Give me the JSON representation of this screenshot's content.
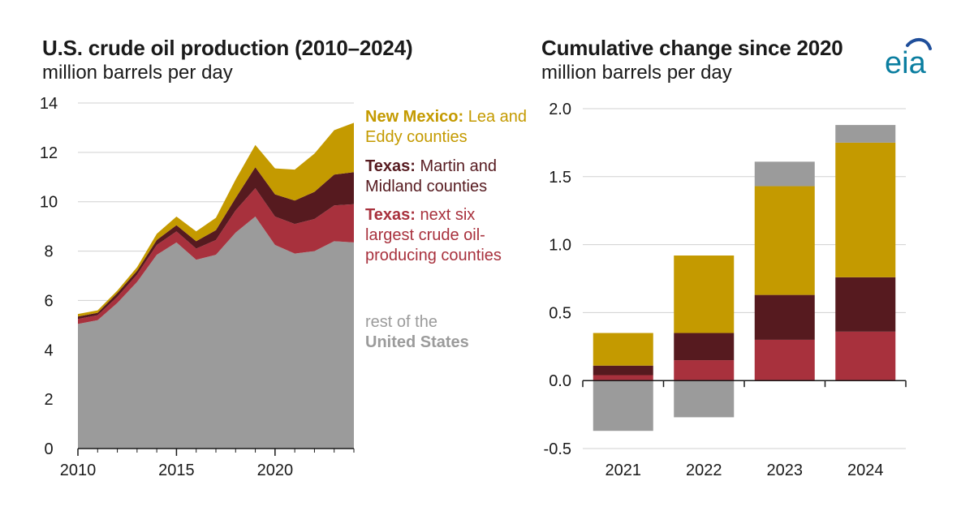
{
  "left_chart": {
    "title": "U.S. crude oil production (2010–2024)",
    "subtitle": "million barrels per day"
  },
  "right_chart": {
    "title": "Cumulative change since 2020",
    "subtitle": "million barrels per day"
  },
  "legend": [
    {
      "bold": "New Mexico:",
      "text": "Lea and Eddy counties",
      "color": "#c49a00"
    },
    {
      "bold": "Texas:",
      "text": "Martin and Midland counties",
      "color": "#561a1f"
    },
    {
      "bold": "Texas:",
      "text": "next six largest crude oil-producing counties",
      "color": "#a8313d"
    },
    {
      "bold": "United States",
      "text": "rest of the",
      "color": "#9b9b9b"
    }
  ],
  "logo": {
    "text": "eia",
    "color": "#0b7ea0",
    "accent": "#1f4e9a"
  },
  "colors": {
    "rest": "#9b9b9b",
    "six": "#a8313d",
    "martin_midland": "#561a1f",
    "new_mexico": "#c49a00",
    "grid": "#d0d0d0",
    "axis": "#1a1a1a"
  },
  "chart_data": [
    {
      "type": "area",
      "stacked": true,
      "title": "U.S. crude oil production (2010–2024)",
      "ylabel": "million barrels per day",
      "x": [
        2010,
        2011,
        2012,
        2013,
        2014,
        2015,
        2016,
        2017,
        2018,
        2019,
        2020,
        2021,
        2022,
        2023,
        2024
      ],
      "xticks": [
        2010,
        2015,
        2020
      ],
      "ylim": [
        0,
        14
      ],
      "yticks": [
        0,
        2,
        4,
        6,
        8,
        10,
        12,
        14
      ],
      "grid": true,
      "series": [
        {
          "name": "rest of the United States",
          "key": "rest",
          "values": [
            5.05,
            5.2,
            5.9,
            6.75,
            7.85,
            8.35,
            7.65,
            7.85,
            8.75,
            9.4,
            8.25,
            7.9,
            8.0,
            8.4,
            8.35
          ]
        },
        {
          "name": "Texas: next six largest crude oil-producing counties",
          "key": "six",
          "values": [
            0.2,
            0.2,
            0.25,
            0.3,
            0.4,
            0.45,
            0.45,
            0.6,
            0.9,
            1.15,
            1.15,
            1.2,
            1.3,
            1.45,
            1.55
          ]
        },
        {
          "name": "Texas: Martin and Midland counties",
          "key": "martin_midland",
          "values": [
            0.1,
            0.1,
            0.15,
            0.15,
            0.2,
            0.25,
            0.3,
            0.4,
            0.5,
            0.85,
            0.9,
            0.95,
            1.1,
            1.25,
            1.3
          ]
        },
        {
          "name": "New Mexico: Lea and Eddy counties",
          "key": "new_mexico",
          "values": [
            0.1,
            0.1,
            0.1,
            0.15,
            0.25,
            0.35,
            0.4,
            0.5,
            0.75,
            0.9,
            1.05,
            1.25,
            1.55,
            1.8,
            2.0
          ]
        }
      ]
    },
    {
      "type": "bar",
      "stacked": true,
      "title": "Cumulative change since 2020",
      "ylabel": "million barrels per day",
      "categories": [
        "2021",
        "2022",
        "2023",
        "2024"
      ],
      "ylim": [
        -0.5,
        2.0
      ],
      "yticks": [
        -0.5,
        0.0,
        0.5,
        1.0,
        1.5,
        2.0
      ],
      "ytick_labels": [
        "-0.5",
        "0.0",
        "0.5",
        "1.0",
        "1.5",
        "2.0"
      ],
      "grid": true,
      "series": [
        {
          "name": "Texas: next six largest crude oil-producing counties",
          "key": "six",
          "values": [
            0.04,
            0.15,
            0.3,
            0.36
          ]
        },
        {
          "name": "Texas: Martin and Midland counties",
          "key": "martin_midland",
          "values": [
            0.07,
            0.2,
            0.33,
            0.4
          ]
        },
        {
          "name": "New Mexico: Lea and Eddy counties",
          "key": "new_mexico",
          "values": [
            0.24,
            0.57,
            0.8,
            0.99
          ]
        },
        {
          "name": "rest of the United States",
          "key": "rest",
          "values": [
            -0.37,
            -0.27,
            0.18,
            0.13
          ]
        }
      ]
    }
  ]
}
